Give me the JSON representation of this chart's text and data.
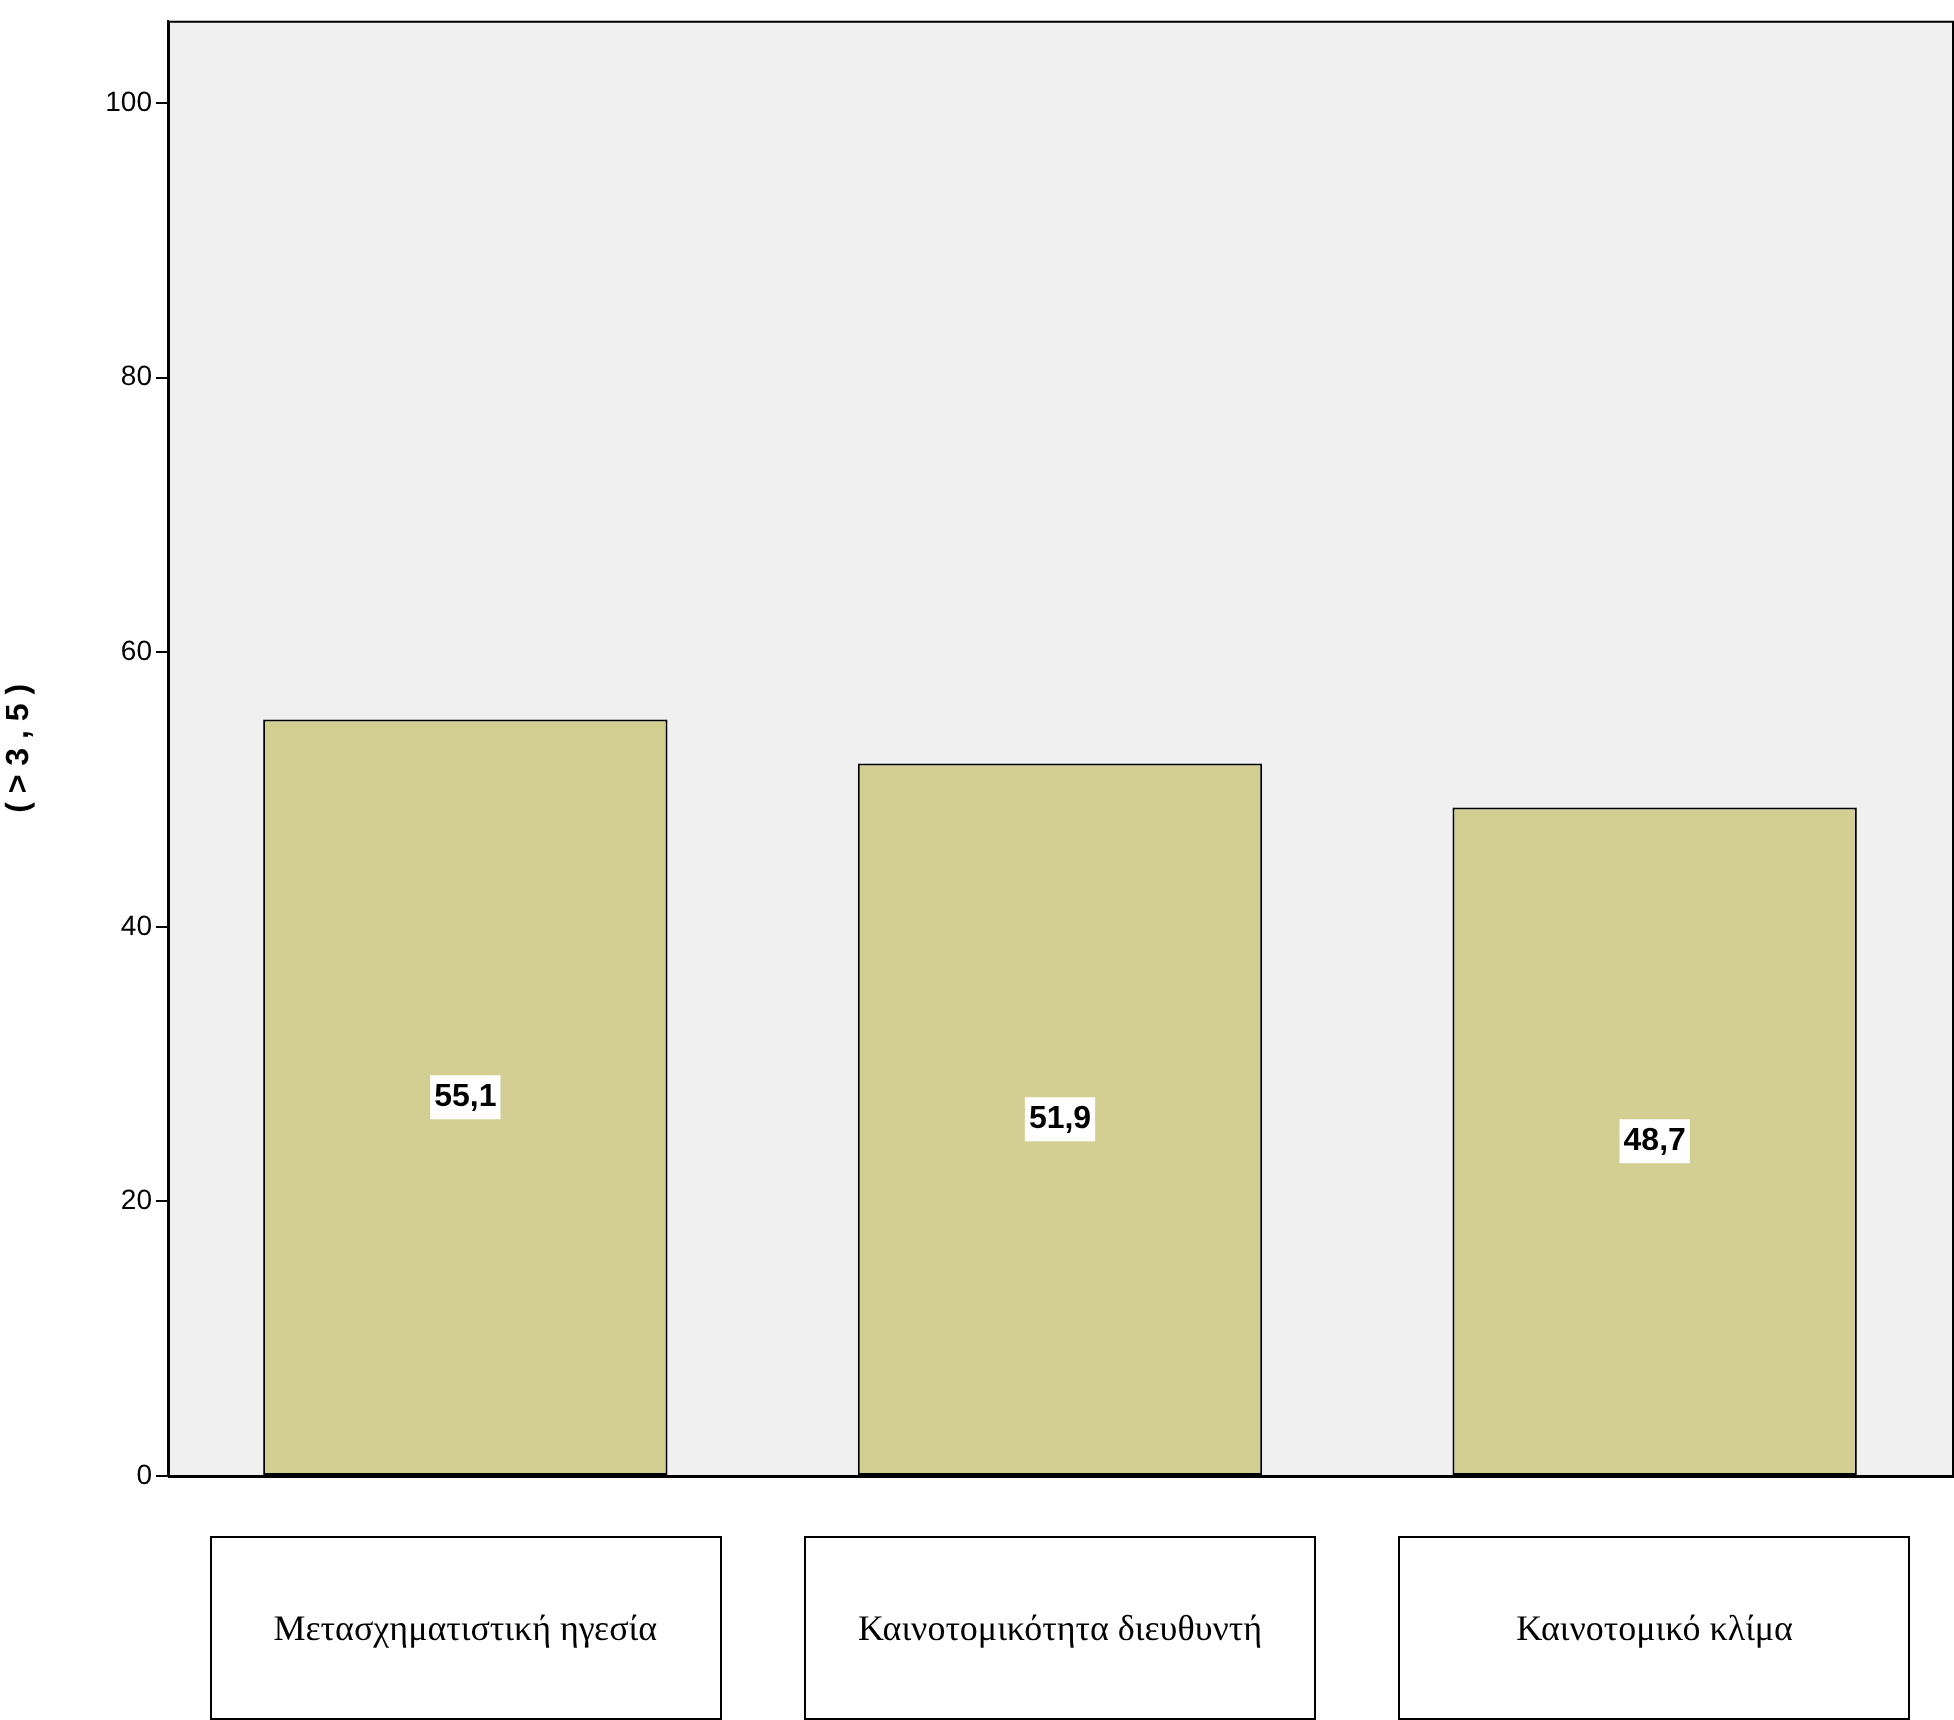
{
  "chart_data": {
    "type": "bar",
    "ylabel": "( > 3 , 5 )",
    "categories": [
      "Μετασχηματιστική ηγεσία",
      "Καινοτομικότητα διευθυντή",
      "Καινοτομικό κλίμα"
    ],
    "values": [
      55.1,
      51.9,
      48.7
    ],
    "value_labels": [
      "55,1",
      "51,9",
      "48,7"
    ],
    "color": "#d3cf93",
    "ylim": [
      0,
      106
    ],
    "yticks": [
      0,
      20,
      40,
      60,
      80,
      100
    ],
    "grid": false,
    "legend": false
  }
}
